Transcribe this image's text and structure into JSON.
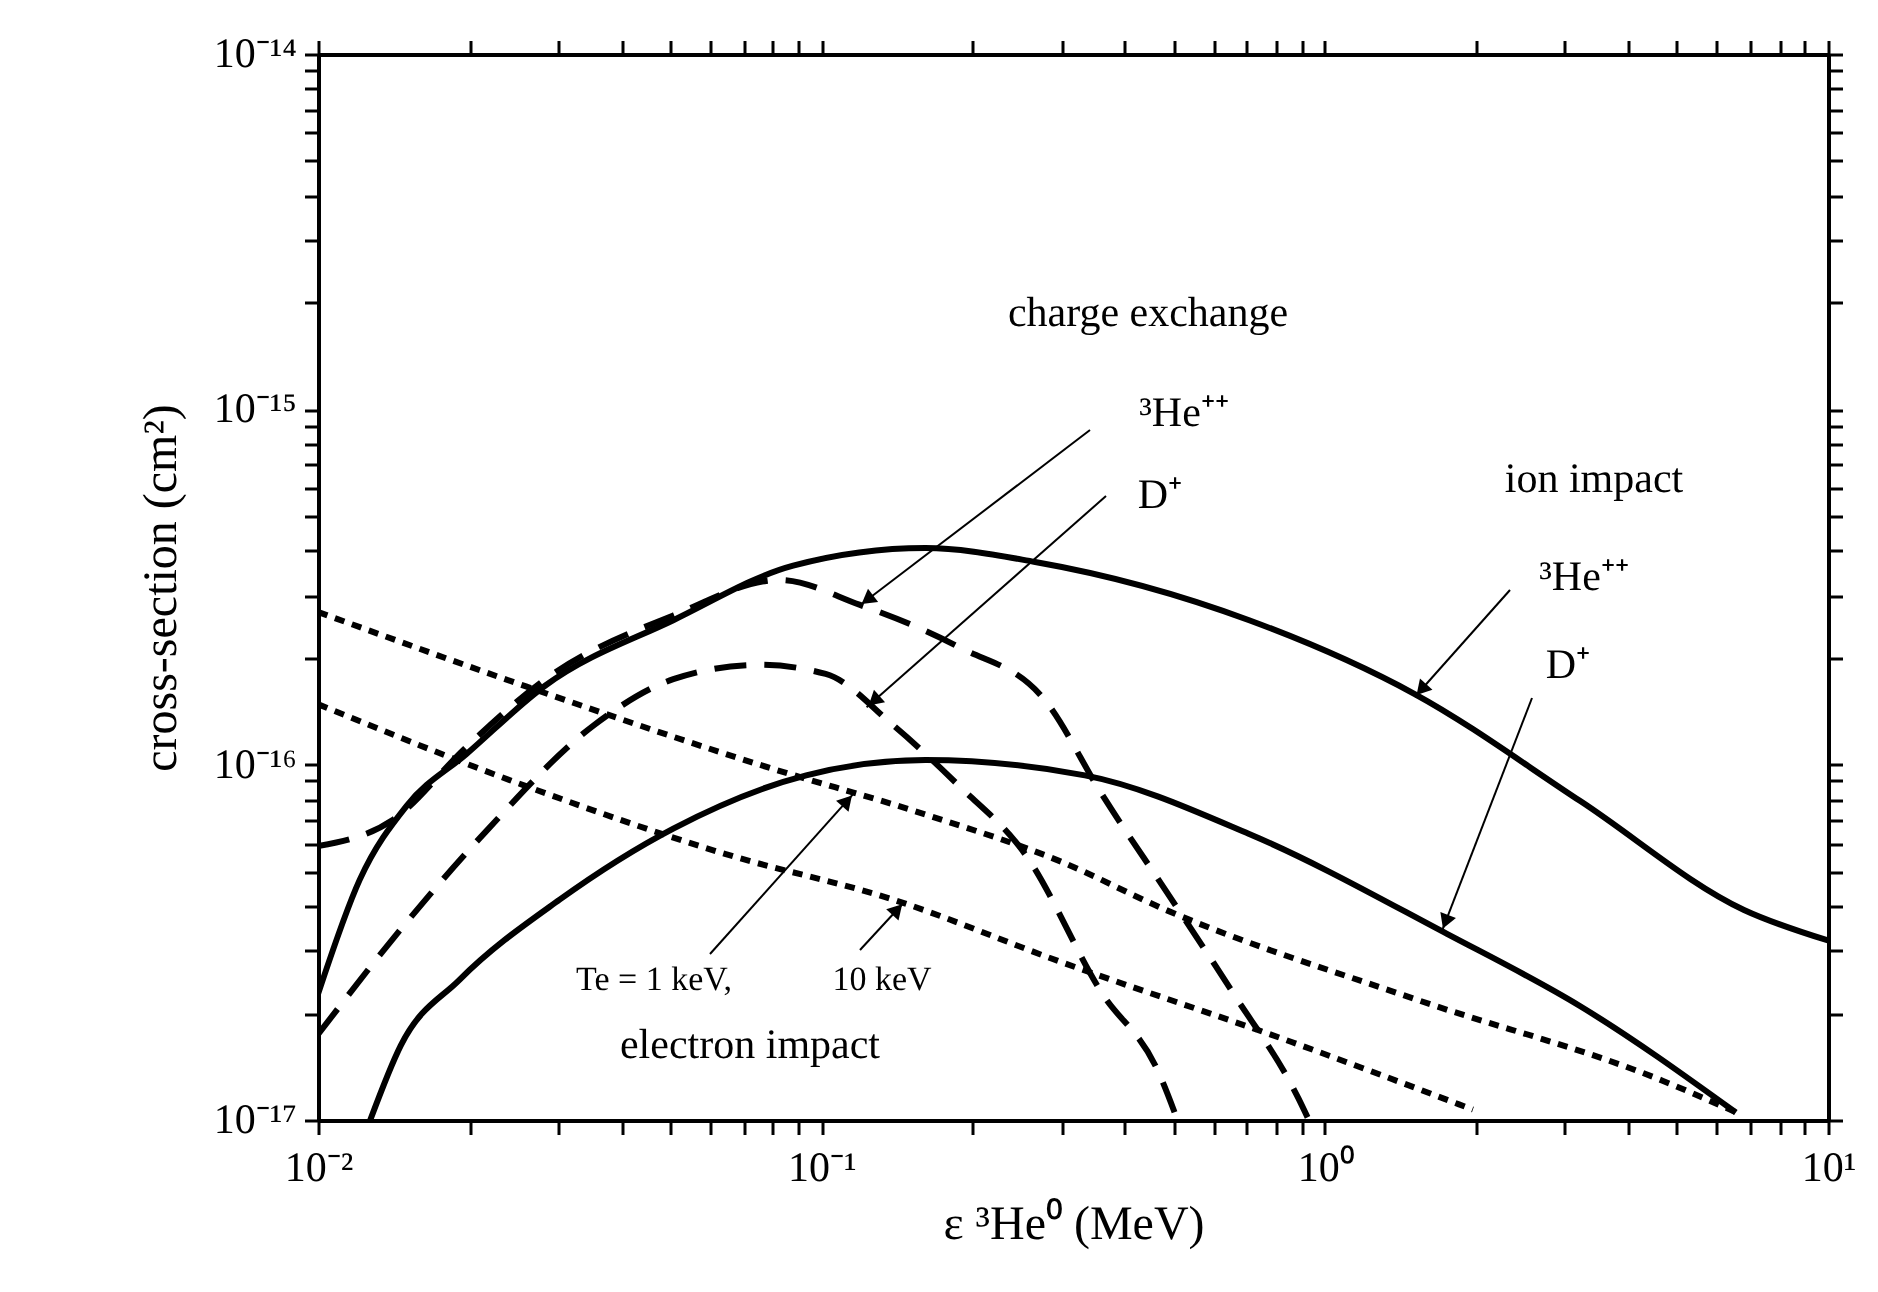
{
  "chart_data": {
    "type": "line",
    "xlabel": "ε ³He⁰ (MeV)",
    "ylabel": "cross-section  (cm²)",
    "xlim": [
      0.01,
      10
    ],
    "ylim": [
      1e-17,
      1e-14
    ],
    "log": "xy",
    "grid": false,
    "xticks": [
      {
        "value": 0.01,
        "label": "10⁻²"
      },
      {
        "value": 0.02,
        "label": null
      },
      {
        "value": 0.03,
        "label": null
      },
      {
        "value": 0.04,
        "label": null
      },
      {
        "value": 0.05,
        "label": null
      },
      {
        "value": 0.06,
        "label": null
      },
      {
        "value": 0.07,
        "label": null
      },
      {
        "value": 0.08,
        "label": null
      },
      {
        "value": 0.09,
        "label": null
      },
      {
        "value": 0.1,
        "label": "10⁻¹"
      },
      {
        "value": 0.2,
        "label": null
      },
      {
        "value": 0.3,
        "label": null
      },
      {
        "value": 0.4,
        "label": null
      },
      {
        "value": 0.5,
        "label": null
      },
      {
        "value": 0.6,
        "label": null
      },
      {
        "value": 0.7,
        "label": null
      },
      {
        "value": 0.8,
        "label": null
      },
      {
        "value": 0.9,
        "label": null
      },
      {
        "value": 1,
        "label": "10⁰"
      },
      {
        "value": 2,
        "label": null
      },
      {
        "value": 3,
        "label": null
      },
      {
        "value": 4,
        "label": null
      },
      {
        "value": 5,
        "label": null
      },
      {
        "value": 6,
        "label": null
      },
      {
        "value": 7,
        "label": null
      },
      {
        "value": 8,
        "label": null
      },
      {
        "value": 9,
        "label": null
      },
      {
        "value": 10,
        "label": "10¹"
      }
    ],
    "yticks": [
      {
        "value": 1e-17,
        "label": "10⁻¹⁷"
      },
      {
        "value": 2e-17,
        "label": null
      },
      {
        "value": 3e-17,
        "label": null
      },
      {
        "value": 4e-17,
        "label": null
      },
      {
        "value": 5e-17,
        "label": null
      },
      {
        "value": 6e-17,
        "label": null
      },
      {
        "value": 7e-17,
        "label": null
      },
      {
        "value": 8e-17,
        "label": null
      },
      {
        "value": 9e-17,
        "label": null
      },
      {
        "value": 1e-16,
        "label": "10⁻¹⁶"
      },
      {
        "value": 2e-16,
        "label": null
      },
      {
        "value": 3e-16,
        "label": null
      },
      {
        "value": 4e-16,
        "label": null
      },
      {
        "value": 5e-16,
        "label": null
      },
      {
        "value": 6e-16,
        "label": null
      },
      {
        "value": 7e-16,
        "label": null
      },
      {
        "value": 8e-16,
        "label": null
      },
      {
        "value": 9e-16,
        "label": null
      },
      {
        "value": 1e-15,
        "label": "10⁻¹⁵"
      },
      {
        "value": 2e-15,
        "label": null
      },
      {
        "value": 3e-15,
        "label": null
      },
      {
        "value": 4e-15,
        "label": null
      },
      {
        "value": 5e-15,
        "label": null
      },
      {
        "value": 6e-15,
        "label": null
      },
      {
        "value": 7e-15,
        "label": null
      },
      {
        "value": 8e-15,
        "label": null
      },
      {
        "value": 9e-15,
        "label": null
      },
      {
        "value": 1e-14,
        "label": "10⁻¹⁴"
      }
    ],
    "series": [
      {
        "color": "#000000",
        "line_style": "solid",
        "x": [
          0.01,
          0.0121,
          0.015,
          0.0197,
          0.0283,
          0.0508,
          0.0879,
          0.161,
          0.266,
          0.708,
          1.51,
          3.22,
          6.81,
          10
        ],
        "values": [
          2.26e-17,
          4.74e-17,
          7.66e-17,
          1.07e-16,
          1.67e-16,
          2.55e-16,
          3.63e-16,
          4.07e-16,
          3.72e-16,
          2.55e-16,
          1.58e-16,
          7.9e-17,
          3.9e-17,
          3.2e-17
        ]
      },
      {
        "color": "#000000",
        "line_style": "solid",
        "x": [
          0.0127,
          0.0146,
          0.0191,
          0.0302,
          0.0508,
          0.0933,
          0.161,
          0.334,
          0.708,
          1.75,
          3.22,
          6.56
        ],
        "values": [
          1e-17,
          1.62e-17,
          2.48e-17,
          4.17e-17,
          6.61e-17,
          9.33e-17,
          1.03e-16,
          9.33e-17,
          6.38e-17,
          3.34e-17,
          2.09e-17,
          1.05e-17
        ]
      },
      {
        "color": "#000000",
        "line_style": "dashed",
        "x": [
          0.01,
          0.0141,
          0.0197,
          0.0283,
          0.0508,
          0.0826,
          0.119,
          0.188,
          0.279,
          0.36,
          0.486,
          0.656,
          0.887,
          0.93
        ],
        "values": [
          5.9e-17,
          7e-17,
          1.12e-16,
          1.74e-16,
          2.63e-16,
          3.31e-16,
          2.82e-16,
          2.14e-16,
          1.51e-16,
          8.3e-17,
          4.37e-17,
          2.29e-17,
          1.15e-17,
          1e-17
        ]
      },
      {
        "color": "#000000",
        "line_style": "dashed",
        "x": [
          0.01,
          0.0141,
          0.0215,
          0.0353,
          0.0508,
          0.0753,
          0.102,
          0.139,
          0.188,
          0.254,
          0.36,
          0.469,
          0.51
        ],
        "values": [
          1.74e-17,
          3.24e-17,
          6.46e-17,
          1.29e-16,
          1.74e-16,
          1.91e-16,
          1.8e-16,
          1.29e-16,
          8.7e-17,
          5.6e-17,
          2.29e-17,
          1.35e-17,
          1e-17
        ]
      },
      {
        "color": "#000000",
        "line_style": "dotted",
        "x": [
          0.01,
          0.0259,
          0.0753,
          0.161,
          0.296,
          0.486,
          1.51,
          4.69,
          6.58
        ],
        "values": [
          2.69e-16,
          1.66e-16,
          1e-16,
          7.24e-17,
          5.37e-17,
          3.89e-17,
          2.19e-17,
          1.29e-17,
          1.05e-17
        ]
      },
      {
        "color": "#000000",
        "line_style": "dotted",
        "x": [
          0.01,
          0.0259,
          0.0646,
          0.139,
          0.296,
          0.857,
          1.97
        ],
        "values": [
          1.48e-16,
          8.7e-17,
          5.6e-17,
          4.17e-17,
          2.8e-17,
          1.66e-17,
          1.07e-17
        ]
      }
    ],
    "annotations": [
      "charge exchange",
      {
        "text": "³He⁺⁺",
        "x": 0.119,
        "y": 2.8e-16
      },
      {
        "text": "D⁺",
        "x": 0.123,
        "y": 1.45e-16
      },
      "ion impact",
      {
        "text": "³He⁺⁺",
        "x": 1.51,
        "y": 1.55e-16
      },
      {
        "text": "D⁺",
        "x": 1.71,
        "y": 3.4e-17
      },
      {
        "text": "Te = 1 keV,",
        "x": 0.116,
        "y": 8.3e-17
      },
      {
        "text": "10 keV",
        "x": 0.146,
        "y": 4.1e-17
      },
      "electron impact"
    ]
  }
}
